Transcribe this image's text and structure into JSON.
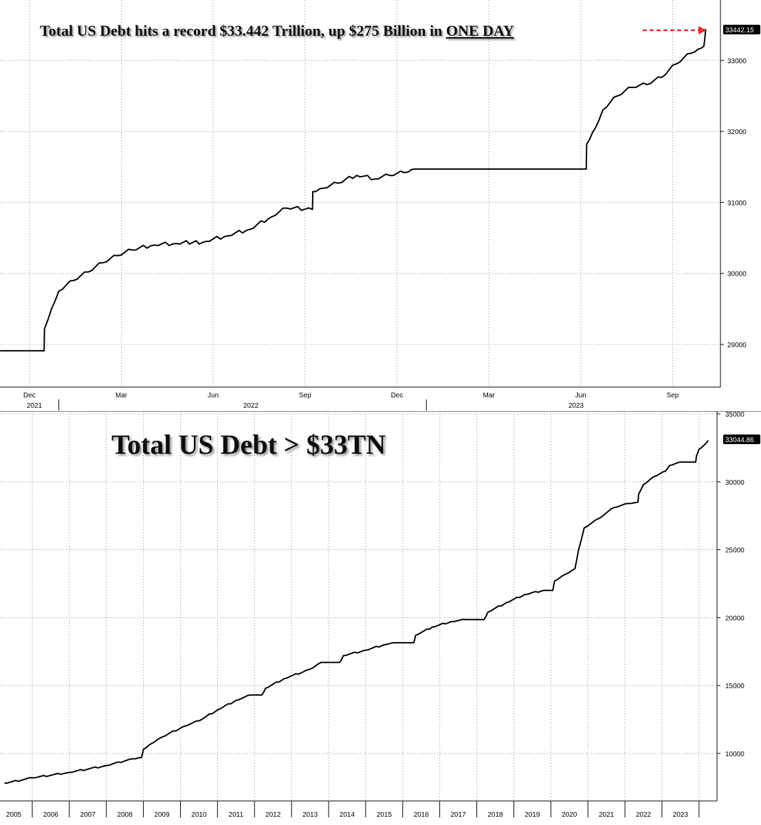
{
  "chart_data": [
    {
      "type": "line",
      "title": "Total US Debt hits a record $33.442 Trillion, up $275 Billion in",
      "title_emphasis": "ONE DAY",
      "ylim": [
        28400,
        33850
      ],
      "y_ticks": [
        "29000",
        "30000",
        "31000",
        "32000",
        "33000"
      ],
      "x_month_ticks": [
        {
          "label": "Dec",
          "x": 2021.92
        },
        {
          "label": "Mar",
          "x": 2022.17
        },
        {
          "label": "Jun",
          "x": 2022.42
        },
        {
          "label": "Sep",
          "x": 2022.67
        },
        {
          "label": "Dec",
          "x": 2022.92
        },
        {
          "label": "Mar",
          "x": 2023.17
        },
        {
          "label": "Jun",
          "x": 2023.42
        },
        {
          "label": "Sep",
          "x": 2023.67
        }
      ],
      "x_year_labels": [
        {
          "label": "2021",
          "x": 2021.88
        },
        {
          "label": "2022",
          "x": 2022.42
        },
        {
          "label": "2023",
          "x": 2023.42
        }
      ],
      "xlim": [
        2021.84,
        2023.8
      ],
      "last_value_label": "33442.15",
      "grid": true,
      "series": [
        {
          "values": [
            [
              2021.84,
              28910
            ],
            [
              2021.96,
              28910
            ],
            [
              2021.961,
              29220
            ],
            [
              2021.98,
              29500
            ],
            [
              2022.0,
              29750
            ],
            [
              2022.04,
              29900
            ],
            [
              2022.08,
              30020
            ],
            [
              2022.12,
              30150
            ],
            [
              2022.16,
              30250
            ],
            [
              2022.2,
              30330
            ],
            [
              2022.26,
              30400
            ],
            [
              2022.32,
              30420
            ],
            [
              2022.4,
              30450
            ],
            [
              2022.46,
              30530
            ],
            [
              2022.52,
              30620
            ],
            [
              2022.58,
              30800
            ],
            [
              2022.62,
              30920
            ],
            [
              2022.69,
              30900
            ],
            [
              2022.691,
              31150
            ],
            [
              2022.72,
              31200
            ],
            [
              2022.76,
              31270
            ],
            [
              2022.81,
              31380
            ],
            [
              2022.86,
              31330
            ],
            [
              2022.9,
              31380
            ],
            [
              2022.94,
              31420
            ],
            [
              2022.97,
              31470
            ],
            [
              2023.05,
              31470
            ],
            [
              2023.2,
              31470
            ],
            [
              2023.3,
              31470
            ],
            [
              2023.4,
              31470
            ],
            [
              2023.435,
              31470
            ],
            [
              2023.436,
              31820
            ],
            [
              2023.46,
              32050
            ],
            [
              2023.48,
              32300
            ],
            [
              2023.52,
              32500
            ],
            [
              2023.56,
              32620
            ],
            [
              2023.6,
              32660
            ],
            [
              2023.64,
              32760
            ],
            [
              2023.68,
              32950
            ],
            [
              2023.72,
              33100
            ],
            [
              2023.74,
              33160
            ],
            [
              2023.755,
              33200
            ],
            [
              2023.76,
              33442
            ]
          ]
        }
      ]
    },
    {
      "type": "line",
      "title": "Total US Debt > $33TN",
      "ylim": [
        6500,
        35000
      ],
      "y_ticks": [
        "10000",
        "15000",
        "20000",
        "25000",
        "30000",
        "35000"
      ],
      "xlim": [
        2005.0,
        2023.8
      ],
      "x_year_labels": [
        {
          "label": "2005",
          "x": 2005.0
        },
        {
          "label": "2006",
          "x": 2006.0
        },
        {
          "label": "2007",
          "x": 2007.0
        },
        {
          "label": "2008",
          "x": 2008.0
        },
        {
          "label": "2009",
          "x": 2009.0
        },
        {
          "label": "2010",
          "x": 2010.0
        },
        {
          "label": "2011",
          "x": 2011.0
        },
        {
          "label": "2012",
          "x": 2012.0
        },
        {
          "label": "2013",
          "x": 2013.0
        },
        {
          "label": "2014",
          "x": 2014.0
        },
        {
          "label": "2015",
          "x": 2015.0
        },
        {
          "label": "2016",
          "x": 2016.0
        },
        {
          "label": "2017",
          "x": 2017.0
        },
        {
          "label": "2018",
          "x": 2018.0
        },
        {
          "label": "2019",
          "x": 2019.0
        },
        {
          "label": "2020",
          "x": 2020.0
        },
        {
          "label": "2021",
          "x": 2021.0
        },
        {
          "label": "2022",
          "x": 2022.0
        },
        {
          "label": "2023",
          "x": 2023.0
        }
      ],
      "last_value_label": "33044.86",
      "grid": true,
      "series": [
        {
          "values": [
            [
              2004.75,
              7800
            ],
            [
              2005.5,
              8200
            ],
            [
              2006.5,
              8600
            ],
            [
              2007.5,
              9100
            ],
            [
              2008.2,
              9600
            ],
            [
              2008.45,
              9700
            ],
            [
              2008.5,
              10300
            ],
            [
              2008.7,
              10700
            ],
            [
              2009.0,
              11200
            ],
            [
              2009.6,
              12000
            ],
            [
              2010.0,
              12400
            ],
            [
              2010.5,
              13200
            ],
            [
              2011.0,
              13900
            ],
            [
              2011.4,
              14300
            ],
            [
              2011.7,
              14300
            ],
            [
              2011.8,
              14800
            ],
            [
              2012.3,
              15500
            ],
            [
              2013.0,
              16200
            ],
            [
              2013.3,
              16700
            ],
            [
              2013.8,
              16700
            ],
            [
              2013.9,
              17200
            ],
            [
              2014.5,
              17600
            ],
            [
              2015.0,
              18000
            ],
            [
              2015.25,
              18150
            ],
            [
              2015.8,
              18150
            ],
            [
              2015.85,
              18700
            ],
            [
              2016.3,
              19300
            ],
            [
              2016.8,
              19700
            ],
            [
              2017.2,
              19850
            ],
            [
              2017.7,
              19850
            ],
            [
              2017.8,
              20400
            ],
            [
              2018.3,
              21100
            ],
            [
              2018.8,
              21700
            ],
            [
              2019.3,
              22000
            ],
            [
              2019.55,
              22000
            ],
            [
              2019.6,
              22700
            ],
            [
              2019.9,
              23200
            ],
            [
              2020.15,
              23600
            ],
            [
              2020.25,
              25000
            ],
            [
              2020.4,
              26600
            ],
            [
              2020.8,
              27300
            ],
            [
              2021.2,
              28100
            ],
            [
              2021.6,
              28400
            ],
            [
              2021.85,
              28500
            ],
            [
              2021.87,
              29100
            ],
            [
              2022.0,
              29800
            ],
            [
              2022.3,
              30400
            ],
            [
              2022.6,
              30800
            ],
            [
              2022.7,
              31200
            ],
            [
              2023.0,
              31450
            ],
            [
              2023.41,
              31450
            ],
            [
              2023.43,
              31900
            ],
            [
              2023.5,
              32400
            ],
            [
              2023.6,
              32600
            ],
            [
              2023.75,
              33044
            ]
          ]
        }
      ]
    }
  ]
}
